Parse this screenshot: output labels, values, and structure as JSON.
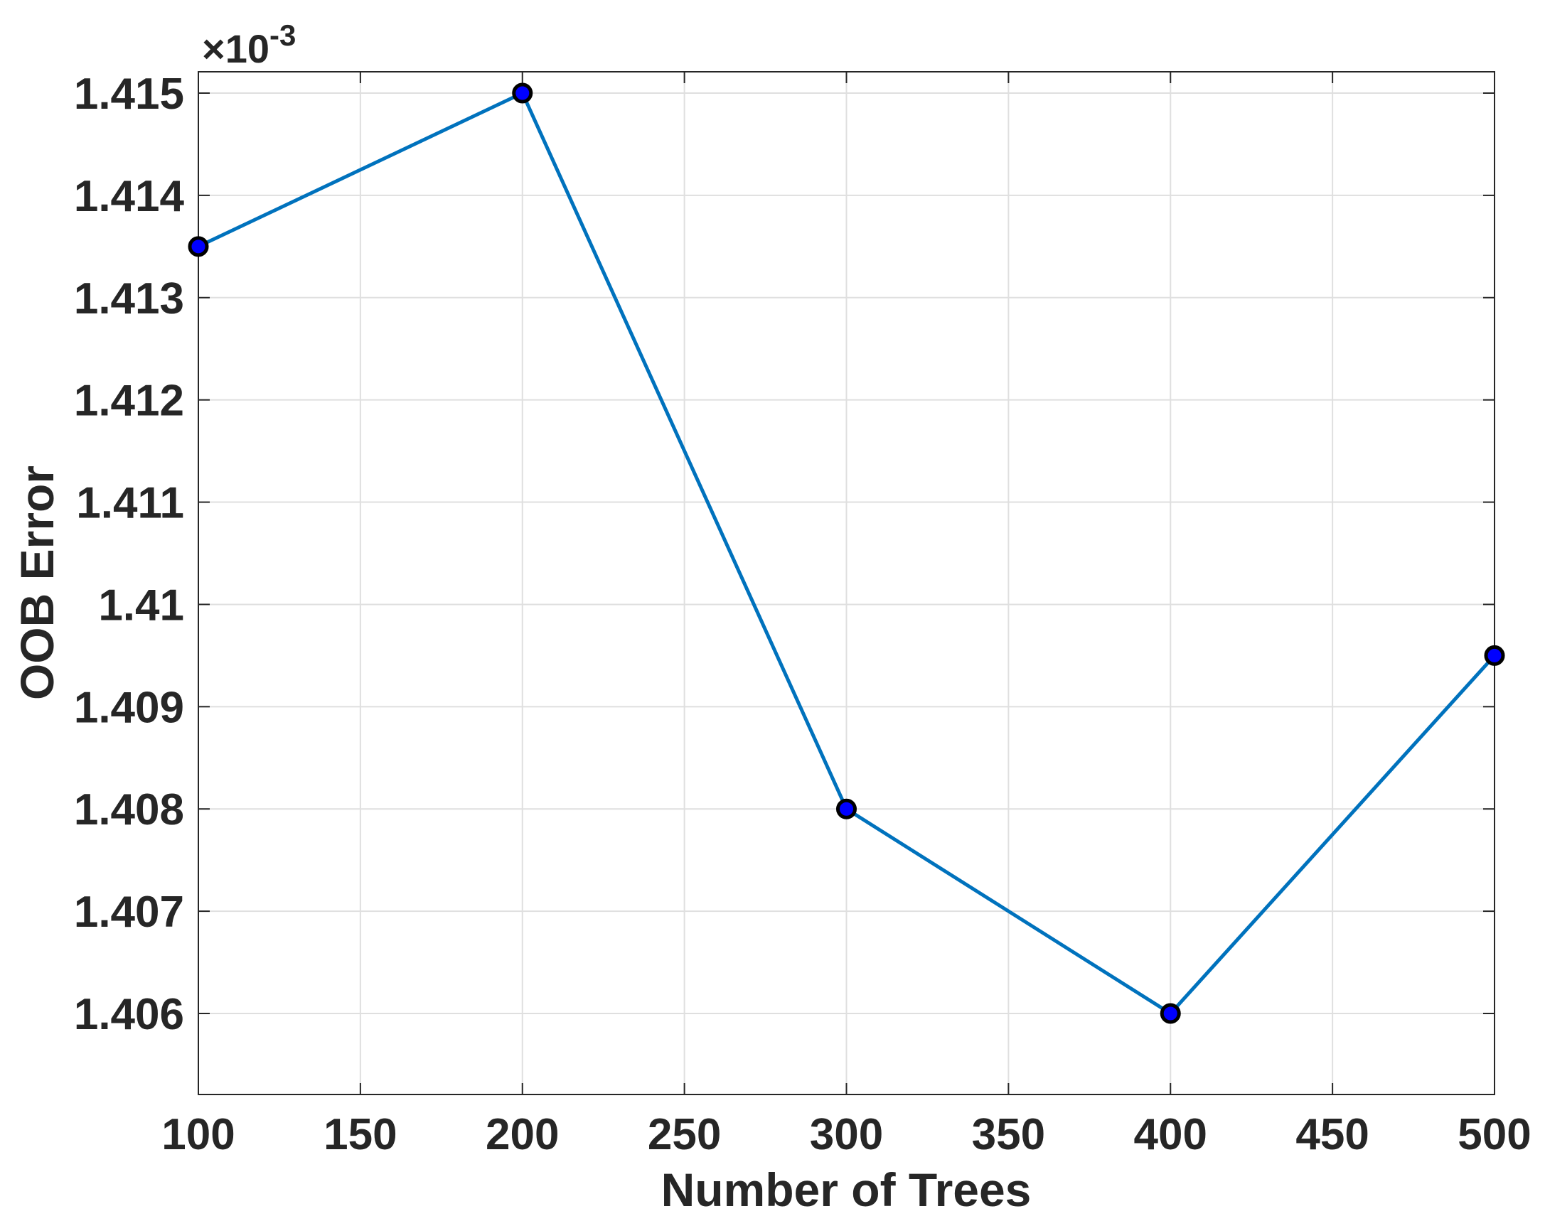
{
  "chart_data": {
    "type": "line",
    "x": [
      100,
      200,
      300,
      400,
      500
    ],
    "series": [
      {
        "values": [
          0.0014135,
          0.001415,
          0.001408,
          0.001406,
          0.0014095
        ]
      }
    ],
    "xlabel": "Number of Trees",
    "ylabel": "OOB Error",
    "xlim": [
      100,
      500
    ],
    "ylim": [
      0.0014052,
      0.001415
    ],
    "xticks": [
      100,
      150,
      200,
      250,
      300,
      350,
      400,
      450,
      500
    ],
    "xtick_labels": [
      "100",
      "150",
      "200",
      "250",
      "300",
      "350",
      "400",
      "450",
      "500"
    ],
    "yticks": [
      0.001406,
      0.001407,
      0.001408,
      0.001409,
      0.00141,
      0.001411,
      0.001412,
      0.001413,
      0.001414,
      0.001415
    ],
    "ytick_labels": [
      "1.406",
      "1.407",
      "1.408",
      "1.409",
      "1.41",
      "1.411",
      "1.412",
      "1.413",
      "1.414",
      "1.415"
    ],
    "y_exponent_prefix": "×10",
    "y_exponent_power": "-3",
    "grid": true,
    "line_color": "#0072bd",
    "marker_color": "#0000ff",
    "marker_edge_color": "#000000"
  }
}
